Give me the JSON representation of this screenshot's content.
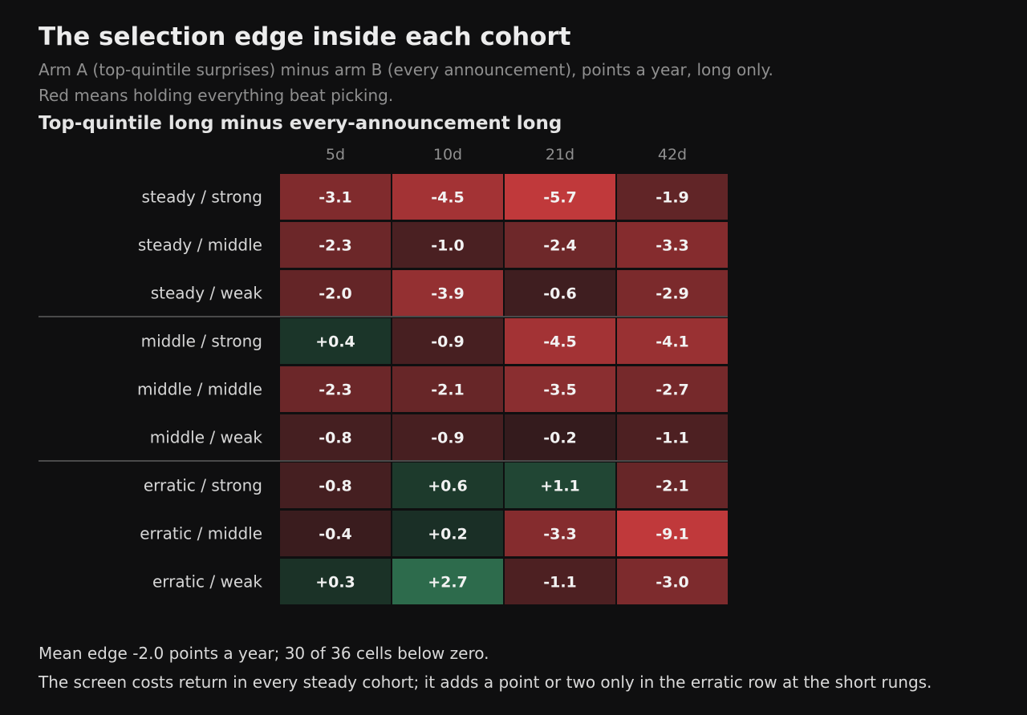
{
  "header": {
    "title": "The selection edge inside each cohort",
    "subtitle_line1": "Arm A (top-quintile surprises) minus arm B (every announcement), points a year, long only.",
    "subtitle_line2": "Red means holding everything beat picking."
  },
  "chart_data": {
    "type": "heatmap",
    "title": "Top-quintile long minus every-announcement long",
    "columns": [
      "5d",
      "10d",
      "21d",
      "42d"
    ],
    "rows": [
      "steady / strong",
      "steady / middle",
      "steady / weak",
      "middle / strong",
      "middle / middle",
      "middle / weak",
      "erratic / strong",
      "erratic / middle",
      "erratic / weak"
    ],
    "values": [
      [
        -3.1,
        -4.5,
        -5.7,
        -1.9
      ],
      [
        -2.3,
        -1.0,
        -2.4,
        -3.3
      ],
      [
        -2.0,
        -3.9,
        -0.6,
        -2.9
      ],
      [
        0.4,
        -0.9,
        -4.5,
        -4.1
      ],
      [
        -2.3,
        -2.1,
        -3.5,
        -2.7
      ],
      [
        -0.8,
        -0.9,
        -0.2,
        -1.1
      ],
      [
        -0.8,
        0.6,
        1.1,
        -2.1
      ],
      [
        -0.4,
        0.2,
        -3.3,
        -9.1
      ],
      [
        0.3,
        2.7,
        -1.1,
        -3.0
      ]
    ],
    "group_dividers_after_rows": [
      3,
      6
    ],
    "colors": {
      "negative": "#c0393b",
      "positive": "#2d6b4c",
      "neutral": "#2a1c1e"
    }
  },
  "footer": {
    "line1": "Mean edge -2.0 points a year; 30 of 36 cells below zero.",
    "line2": "The screen costs return in every steady cohort; it adds a point or two only in the erratic row at the short rungs."
  }
}
